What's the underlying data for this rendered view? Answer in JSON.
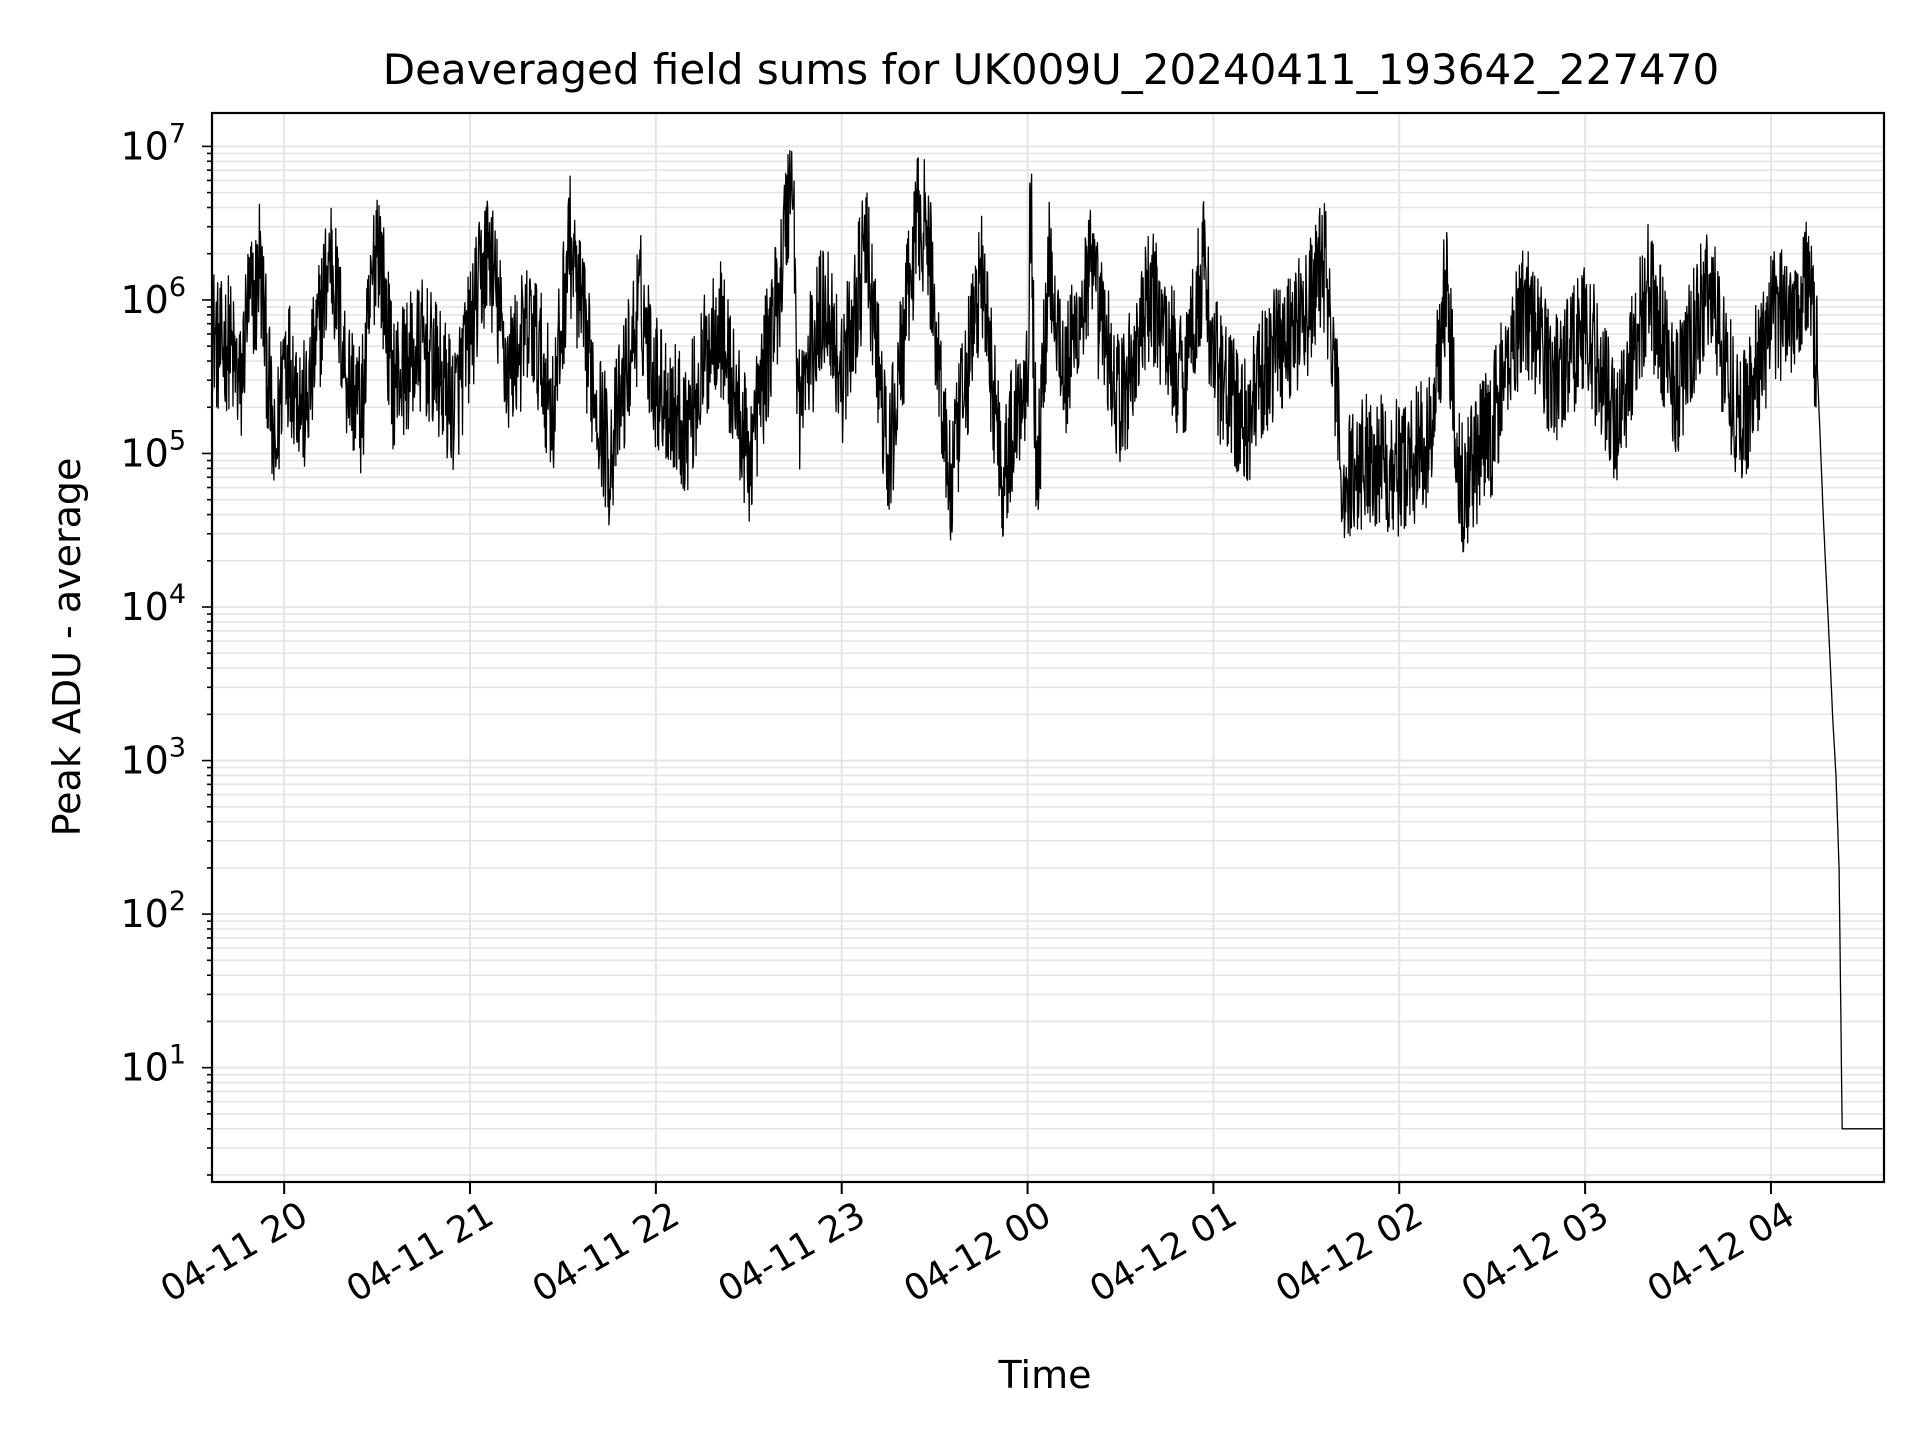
{
  "chart_data": {
    "type": "line",
    "title": "Deaveraged field sums for UK009U_20240411_193642_227470",
    "xlabel": "Time",
    "ylabel": "Peak ADU - average",
    "yscale": "log",
    "ylim": [
      1.8,
      16500000
    ],
    "xlim": [
      "2024-04-11 19:36:42",
      "2024-04-12 04:36:30"
    ],
    "grid": true,
    "legend": "none",
    "x_ticks": [
      {
        "x": "2024-04-11 20:00",
        "label": "04-11 20"
      },
      {
        "x": "2024-04-11 21:00",
        "label": "04-11 21"
      },
      {
        "x": "2024-04-11 22:00",
        "label": "04-11 22"
      },
      {
        "x": "2024-04-11 23:00",
        "label": "04-11 23"
      },
      {
        "x": "2024-04-12 00:00",
        "label": "04-12 00"
      },
      {
        "x": "2024-04-12 01:00",
        "label": "04-12 01"
      },
      {
        "x": "2024-04-12 02:00",
        "label": "04-12 02"
      },
      {
        "x": "2024-04-12 03:00",
        "label": "04-12 03"
      },
      {
        "x": "2024-04-12 04:00",
        "label": "04-12 04"
      }
    ],
    "y_ticks": [
      {
        "value": 10,
        "base": "10",
        "exp": "1"
      },
      {
        "value": 100,
        "base": "10",
        "exp": "2"
      },
      {
        "value": 1000,
        "base": "10",
        "exp": "3"
      },
      {
        "value": 10000,
        "base": "10",
        "exp": "4"
      },
      {
        "value": 100000,
        "base": "10",
        "exp": "5"
      },
      {
        "value": 1000000,
        "base": "10",
        "exp": "6"
      },
      {
        "value": 10000000,
        "base": "10",
        "exp": "7"
      }
    ],
    "series_color": "#000000",
    "grid_color": "#e5e5e5",
    "series": [
      {
        "points": [
          [
            "2024-04-11 19:36:42",
            700000
          ],
          [
            "2024-04-11 19:39",
            450000
          ],
          [
            "2024-04-11 19:42",
            550000
          ],
          [
            "2024-04-11 19:46",
            250000
          ],
          [
            "2024-04-11 19:48",
            900000
          ],
          [
            "2024-04-11 19:51",
            1100000
          ],
          [
            "2024-04-11 19:52",
            1900000
          ],
          [
            "2024-04-11 19:55",
            300000
          ],
          [
            "2024-04-11 19:57",
            75000
          ],
          [
            "2024-04-11 20:00",
            500000
          ],
          [
            "2024-04-11 20:07",
            180000
          ],
          [
            "2024-04-11 20:15",
            2100000
          ],
          [
            "2024-04-11 20:20",
            350000
          ],
          [
            "2024-04-11 20:25",
            180000
          ],
          [
            "2024-04-11 20:30",
            3100000
          ],
          [
            "2024-04-11 20:35",
            300000
          ],
          [
            "2024-04-11 20:45",
            500000
          ],
          [
            "2024-04-11 20:55",
            200000
          ],
          [
            "2024-04-11 21:00",
            600000
          ],
          [
            "2024-04-11 21:06",
            2300000
          ],
          [
            "2024-04-11 21:12",
            350000
          ],
          [
            "2024-04-11 21:20",
            700000
          ],
          [
            "2024-04-11 21:27",
            180000
          ],
          [
            "2024-04-11 21:32",
            2500000
          ],
          [
            "2024-04-11 21:38",
            450000
          ],
          [
            "2024-04-11 21:45",
            90000
          ],
          [
            "2024-04-11 21:55",
            1000000
          ],
          [
            "2024-04-11 22:00",
            300000
          ],
          [
            "2024-04-11 22:10",
            150000
          ],
          [
            "2024-04-11 22:20",
            800000
          ],
          [
            "2024-04-11 22:30",
            90000
          ],
          [
            "2024-04-11 22:40",
            1300000
          ],
          [
            "2024-04-11 22:44",
            8000000
          ],
          [
            "2024-04-11 22:46",
            200000
          ],
          [
            "2024-04-11 22:55",
            1100000
          ],
          [
            "2024-04-11 23:00",
            300000
          ],
          [
            "2024-04-11 23:08",
            2200000
          ],
          [
            "2024-04-11 23:15",
            80000
          ],
          [
            "2024-04-11 23:25",
            3900000
          ],
          [
            "2024-04-11 23:28",
            2300000
          ],
          [
            "2024-04-11 23:35",
            55000
          ],
          [
            "2024-04-11 23:45",
            1500000
          ],
          [
            "2024-04-11 23:52",
            70000
          ],
          [
            "2024-04-12 00:00",
            400000
          ],
          [
            "2024-04-12 00:01",
            4800000
          ],
          [
            "2024-04-12 00:03",
            52000
          ],
          [
            "2024-04-12 00:07",
            2000000
          ],
          [
            "2024-04-12 00:12",
            300000
          ],
          [
            "2024-04-12 00:20",
            1500000
          ],
          [
            "2024-04-12 00:30",
            200000
          ],
          [
            "2024-04-12 00:40",
            1100000
          ],
          [
            "2024-04-12 00:50",
            300000
          ],
          [
            "2024-04-12 00:57",
            1800000
          ],
          [
            "2024-04-12 01:00",
            400000
          ],
          [
            "2024-04-12 01:10",
            150000
          ],
          [
            "2024-04-12 01:20",
            500000
          ],
          [
            "2024-04-12 01:30",
            800000
          ],
          [
            "2024-04-12 01:36",
            1800000
          ],
          [
            "2024-04-12 01:42",
            60000
          ],
          [
            "2024-04-12 01:50",
            100000
          ],
          [
            "2024-04-12 02:00",
            80000
          ],
          [
            "2024-04-12 02:10",
            120000
          ],
          [
            "2024-04-12 02:15",
            1300000
          ],
          [
            "2024-04-12 02:20",
            60000
          ],
          [
            "2024-04-12 02:30",
            150000
          ],
          [
            "2024-04-12 02:40",
            1000000
          ],
          [
            "2024-04-12 02:50",
            300000
          ],
          [
            "2024-04-12 03:00",
            700000
          ],
          [
            "2024-04-12 03:10",
            150000
          ],
          [
            "2024-04-12 03:20",
            1200000
          ],
          [
            "2024-04-12 03:30",
            250000
          ],
          [
            "2024-04-12 03:40",
            1300000
          ],
          [
            "2024-04-12 03:50",
            150000
          ],
          [
            "2024-04-12 04:00",
            700000
          ],
          [
            "2024-04-12 04:10",
            1100000
          ],
          [
            "2024-04-12 04:12",
            1500000
          ],
          [
            "2024-04-12 04:15",
            350000
          ],
          [
            "2024-04-12 04:17",
            35000
          ],
          [
            "2024-04-12 04:19",
            5000
          ],
          [
            "2024-04-12 04:20",
            1800
          ],
          [
            "2024-04-12 04:21",
            800
          ],
          [
            "2024-04-12 04:22",
            200
          ],
          [
            "2024-04-12 04:23",
            4
          ],
          [
            "2024-04-12 04:36",
            4
          ]
        ]
      }
    ]
  }
}
